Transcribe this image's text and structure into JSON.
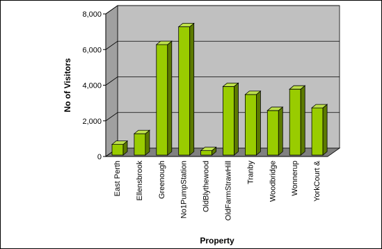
{
  "chart_data": {
    "type": "bar",
    "style": "3d-column",
    "categories": [
      "East Perth",
      "Ellensbrook",
      "Greenough",
      "No1PumpStation",
      "OldBlythewood",
      "OldFarmStrawHill",
      "Tranby",
      "Woodbridge",
      "Wonnerup",
      "YorkCourt &"
    ],
    "values": [
      600,
      1200,
      6200,
      7200,
      250,
      3850,
      3400,
      2500,
      3700,
      2650
    ],
    "title": "",
    "xlabel": "Property",
    "ylabel": "No of Visitors",
    "ylim": [
      0,
      8000
    ],
    "yticks": [
      0,
      2000,
      4000,
      6000,
      8000
    ],
    "ytick_labels": [
      "0",
      "2,000",
      "4,000",
      "6,000",
      "8,000"
    ],
    "grid": true,
    "legend": "none",
    "colors": {
      "bar_front": "#99cc00",
      "bar_side": "#5c7a00",
      "bar_top": "#bde04a",
      "wall_back": "#c0c0c0",
      "wall_side": "#a0a0a0",
      "floor": "#808080"
    }
  }
}
